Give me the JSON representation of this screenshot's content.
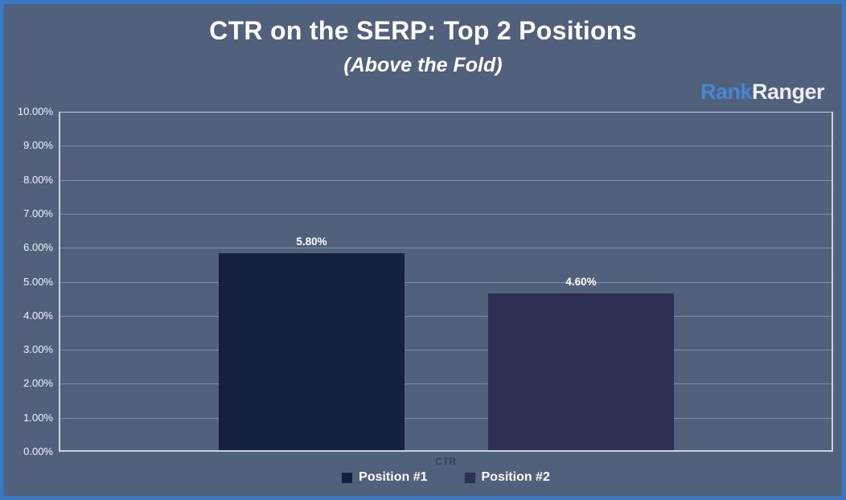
{
  "logo": {
    "part1": "Rank",
    "part2": "Ranger",
    "part1_color": "#4587D6",
    "part2_color": "#EBEFF4"
  },
  "chart_data": {
    "type": "bar",
    "title": "CTR on the SERP: Top 2 Positions",
    "subtitle": "(Above the Fold)",
    "categories": [
      "CTR"
    ],
    "series": [
      {
        "name": "Position #1",
        "values": [
          5.8
        ],
        "value_labels": [
          "5.80%"
        ],
        "color": "#15213C"
      },
      {
        "name": "Position #2",
        "values": [
          4.6
        ],
        "value_labels": [
          "4.60%"
        ],
        "color": "#2D2F55"
      }
    ],
    "xlabel": "CTR",
    "ylabel": "",
    "ylim": [
      0,
      10
    ],
    "ytick_step": 1,
    "ytick_labels": [
      "0.00%",
      "1.00%",
      "2.00%",
      "3.00%",
      "4.00%",
      "5.00%",
      "6.00%",
      "7.00%",
      "8.00%",
      "9.00%",
      "10.00%"
    ],
    "grid": true,
    "legend_position": "bottom"
  },
  "colors": {
    "background": "#51617B",
    "frame_border": "#3679C2",
    "plot_border": "#E0E6EE",
    "gridline": "#BACAE4",
    "text": "#FFFFFF"
  }
}
